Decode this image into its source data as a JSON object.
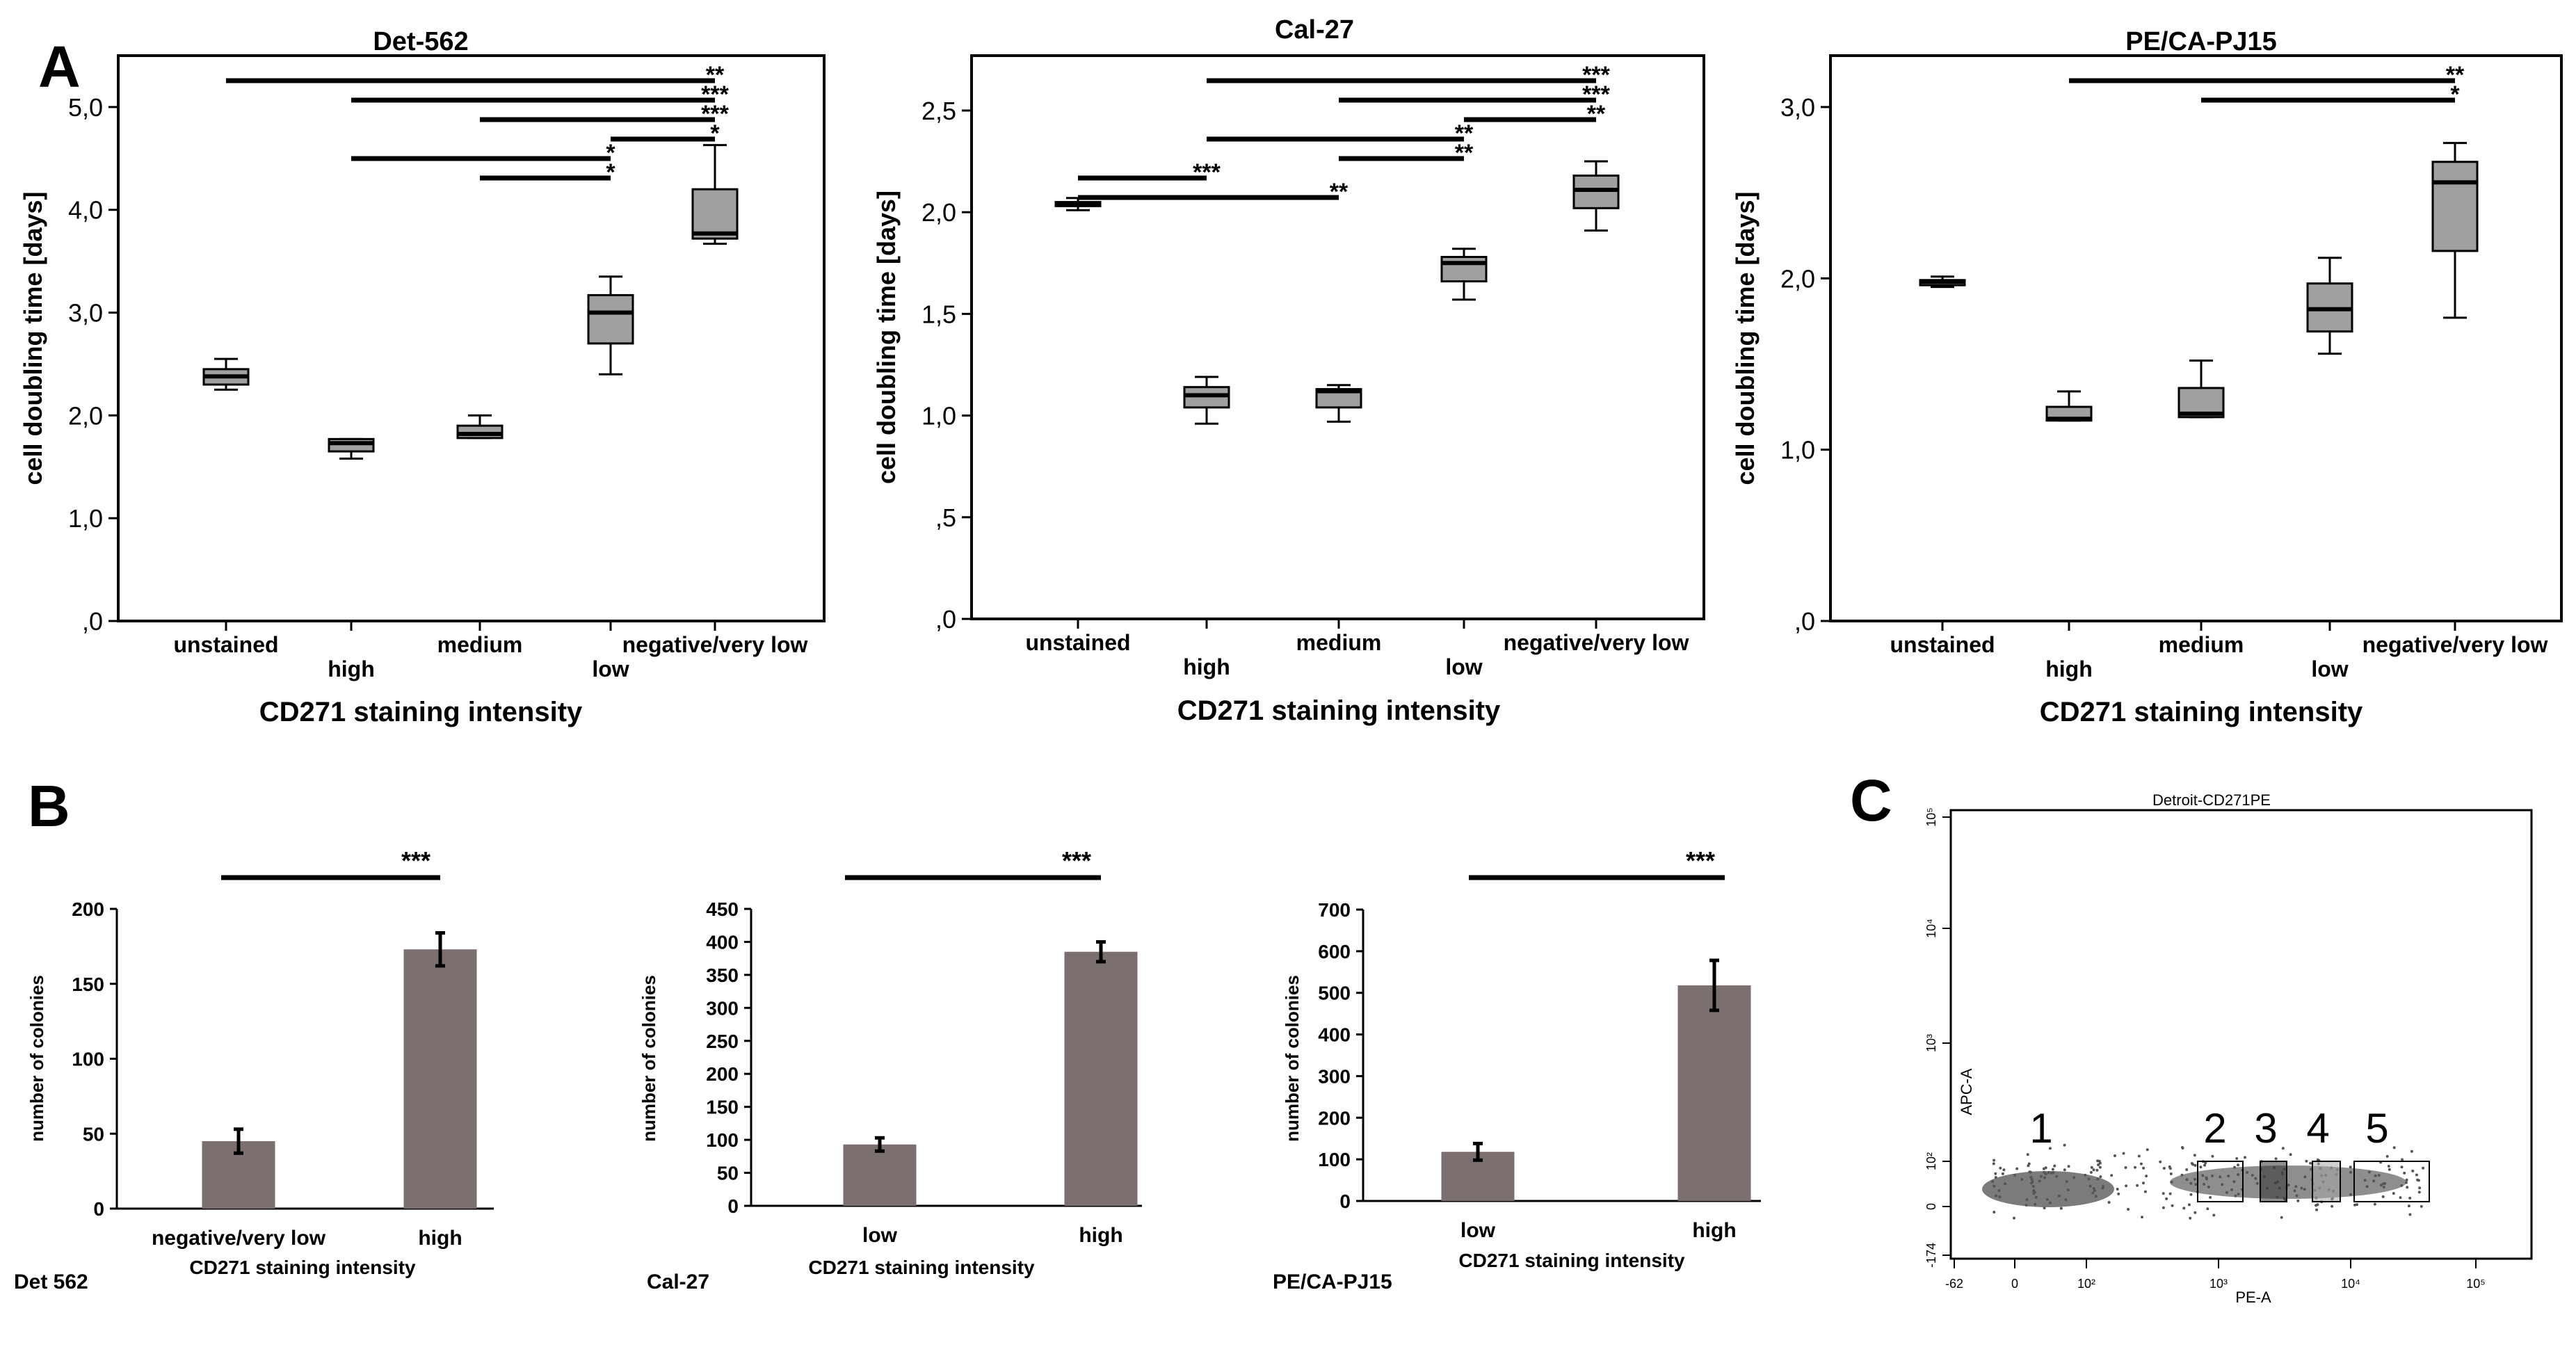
{
  "panels": {
    "A": "A",
    "B": "B",
    "C": "C"
  },
  "colors": {
    "box_fill": "#a0a0a0",
    "bar_fill": "#7b6f70",
    "ink": "#000000",
    "dots": "#555555",
    "gate_fill_3": "#333333",
    "gate_fill_4": "#a8a8a8"
  },
  "chart_data": [
    {
      "id": "A1",
      "type": "box",
      "title": "Det-562",
      "xlabel": "CD271 staining intensity",
      "ylabel": "cell doubling time [days]",
      "ylim": [
        0,
        5.5
      ],
      "yticks": [
        0,
        1,
        2,
        3,
        4,
        5
      ],
      "ytick_labels": [
        ",0",
        "1,0",
        "2,0",
        "3,0",
        "4,0",
        "5,0"
      ],
      "categories": [
        "unstained",
        "high",
        "medium",
        "low",
        "negative/very low"
      ],
      "category_row": [
        "top",
        "bottom",
        "top",
        "bottom",
        "top"
      ],
      "boxes": [
        {
          "min": 2.25,
          "q1": 2.3,
          "median": 2.38,
          "q3": 2.45,
          "max": 2.55
        },
        {
          "min": 1.58,
          "q1": 1.65,
          "median": 1.73,
          "q3": 1.77,
          "max": 1.77
        },
        {
          "min": 1.78,
          "q1": 1.78,
          "median": 1.82,
          "q3": 1.9,
          "max": 2.0
        },
        {
          "min": 2.4,
          "q1": 2.7,
          "median": 3.0,
          "q3": 3.17,
          "max": 3.35
        },
        {
          "min": 3.67,
          "q1": 3.72,
          "median": 3.77,
          "q3": 4.2,
          "max": 4.63
        }
      ],
      "significance": [
        {
          "from": 0,
          "to": 4,
          "label": "**"
        },
        {
          "from": 1,
          "to": 4,
          "label": "***"
        },
        {
          "from": 2,
          "to": 4,
          "label": "***"
        },
        {
          "from": 3,
          "to": 4,
          "label": "*"
        },
        {
          "from": 1,
          "to": 3,
          "label": "*"
        },
        {
          "from": 2,
          "to": 3,
          "label": "*"
        }
      ]
    },
    {
      "id": "A2",
      "type": "box",
      "title": "Cal-27",
      "xlabel": "CD271 staining intensity",
      "ylabel": "cell doubling time [days]",
      "ylim": [
        0,
        2.77
      ],
      "yticks": [
        0,
        0.5,
        1,
        1.5,
        2,
        2.5
      ],
      "ytick_labels": [
        ",0",
        ",5",
        "1,0",
        "1,5",
        "2,0",
        "2,5"
      ],
      "categories": [
        "unstained",
        "high",
        "medium",
        "low",
        "negative/very low"
      ],
      "category_row": [
        "top",
        "bottom",
        "top",
        "bottom",
        "top"
      ],
      "boxes": [
        {
          "min": 2.01,
          "q1": 2.03,
          "median": 2.04,
          "q3": 2.05,
          "max": 2.07
        },
        {
          "min": 0.96,
          "q1": 1.04,
          "median": 1.1,
          "q3": 1.14,
          "max": 1.19
        },
        {
          "min": 0.97,
          "q1": 1.04,
          "median": 1.12,
          "q3": 1.13,
          "max": 1.15
        },
        {
          "min": 1.57,
          "q1": 1.66,
          "median": 1.75,
          "q3": 1.78,
          "max": 1.82
        },
        {
          "min": 1.91,
          "q1": 2.02,
          "median": 2.11,
          "q3": 2.18,
          "max": 2.25
        }
      ],
      "significance": [
        {
          "from": 1,
          "to": 4,
          "label": "***"
        },
        {
          "from": 2,
          "to": 4,
          "label": "***"
        },
        {
          "from": 3,
          "to": 4,
          "label": "**"
        },
        {
          "from": 1,
          "to": 3,
          "label": "**"
        },
        {
          "from": 2,
          "to": 3,
          "label": "**"
        },
        {
          "from": 0,
          "to": 1,
          "label": "***"
        },
        {
          "from": 0,
          "to": 2,
          "label": "**"
        }
      ]
    },
    {
      "id": "A3",
      "type": "box",
      "title": "PE/CA-PJ15",
      "xlabel": "CD271 staining intensity",
      "ylabel": "cell doubling time [days]",
      "ylim": [
        0,
        3.3
      ],
      "yticks": [
        0,
        1,
        2,
        3
      ],
      "ytick_labels": [
        ",0",
        "1,0",
        "2,0",
        "3,0"
      ],
      "categories": [
        "unstained",
        "high",
        "medium",
        "low",
        "negative/very low"
      ],
      "category_row": [
        "top",
        "bottom",
        "top",
        "bottom",
        "top"
      ],
      "boxes": [
        {
          "min": 1.95,
          "q1": 1.96,
          "median": 1.98,
          "q3": 1.99,
          "max": 2.01
        },
        {
          "min": 1.17,
          "q1": 1.17,
          "median": 1.18,
          "q3": 1.25,
          "max": 1.34
        },
        {
          "min": 1.19,
          "q1": 1.19,
          "median": 1.21,
          "q3": 1.36,
          "max": 1.52
        },
        {
          "min": 1.56,
          "q1": 1.69,
          "median": 1.82,
          "q3": 1.97,
          "max": 2.12
        },
        {
          "min": 1.77,
          "q1": 2.16,
          "median": 2.56,
          "q3": 2.68,
          "max": 2.79
        }
      ],
      "significance": [
        {
          "from": 1,
          "to": 4,
          "label": "**"
        },
        {
          "from": 2,
          "to": 4,
          "label": "*"
        }
      ]
    },
    {
      "id": "B1",
      "type": "bar",
      "panel_label": "Det 562",
      "xlabel": "CD271 staining intensity",
      "ylabel": "number of colonies",
      "ylim": [
        0,
        200
      ],
      "yticks": [
        0,
        50,
        100,
        150,
        200
      ],
      "ytick_labels": [
        "0",
        "50",
        "100",
        "150",
        "200"
      ],
      "categories": [
        "negative/very low",
        "high"
      ],
      "values": [
        45,
        173
      ],
      "errors": [
        8,
        11
      ],
      "significance": {
        "label": "***"
      }
    },
    {
      "id": "B2",
      "type": "bar",
      "panel_label": "Cal-27",
      "xlabel": "CD271 staining intensity",
      "ylabel": "number of colonies",
      "ylim": [
        0,
        450
      ],
      "yticks": [
        0,
        50,
        100,
        150,
        200,
        250,
        300,
        350,
        400,
        450
      ],
      "ytick_labels": [
        "0",
        "50",
        "100",
        "150",
        "200",
        "250",
        "300",
        "350",
        "400",
        "450"
      ],
      "categories": [
        "low",
        "high"
      ],
      "values": [
        93,
        385
      ],
      "errors": [
        10,
        15
      ],
      "significance": {
        "label": "***"
      }
    },
    {
      "id": "B3",
      "type": "bar",
      "panel_label": "PE/CA-PJ15",
      "xlabel": "CD271 staining intensity",
      "ylabel": "number of colonies",
      "ylim": [
        0,
        700
      ],
      "yticks": [
        0,
        100,
        200,
        300,
        400,
        500,
        600,
        700
      ],
      "ytick_labels": [
        "0",
        "100",
        "200",
        "300",
        "400",
        "500",
        "600",
        "700"
      ],
      "categories": [
        "low",
        "high"
      ],
      "values": [
        118,
        518
      ],
      "errors": [
        20,
        60
      ],
      "significance": {
        "label": "***"
      }
    },
    {
      "id": "C",
      "type": "scatter",
      "title": "Detroit-CD271PE",
      "xlabel": "PE-A",
      "ylabel": "APC-A",
      "xtick_labels": [
        "-62",
        "0",
        "10²",
        "10³",
        "10⁴",
        "10⁵"
      ],
      "ytick_labels": [
        "-174",
        "0",
        "10²",
        "10³",
        "10⁴",
        "10⁵"
      ],
      "gates": [
        "1",
        "2",
        "3",
        "4",
        "5"
      ]
    }
  ]
}
